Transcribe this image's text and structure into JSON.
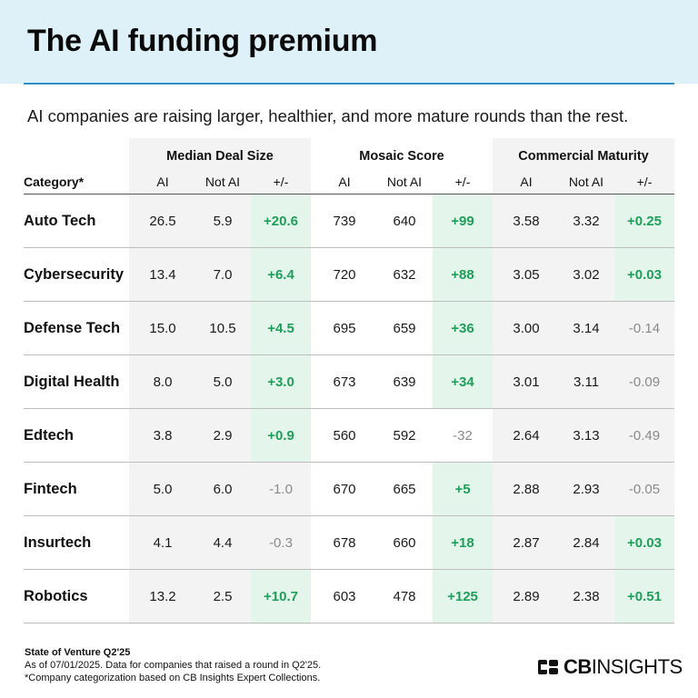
{
  "header": {
    "title": "The AI funding premium"
  },
  "subtitle": "AI companies are raising larger, healthier, and more mature rounds than the rest.",
  "chart_data": {
    "type": "table",
    "category_header": "Category*",
    "groups": [
      {
        "name": "Median Deal Size",
        "columns": [
          "AI",
          "Not AI",
          "+/-"
        ]
      },
      {
        "name": "Mosaic Score",
        "columns": [
          "AI",
          "Not AI",
          "+/-"
        ]
      },
      {
        "name": "Commercial Maturity",
        "columns": [
          "AI",
          "Not AI",
          "+/-"
        ]
      }
    ],
    "rows": [
      {
        "category": "Auto Tech",
        "values": [
          "26.5",
          "5.9",
          "+20.6",
          "739",
          "640",
          "+99",
          "3.58",
          "3.32",
          "+0.25"
        ]
      },
      {
        "category": "Cybersecurity",
        "values": [
          "13.4",
          "7.0",
          "+6.4",
          "720",
          "632",
          "+88",
          "3.05",
          "3.02",
          "+0.03"
        ]
      },
      {
        "category": "Defense Tech",
        "values": [
          "15.0",
          "10.5",
          "+4.5",
          "695",
          "659",
          "+36",
          "3.00",
          "3.14",
          "-0.14"
        ]
      },
      {
        "category": "Digital Health",
        "values": [
          "8.0",
          "5.0",
          "+3.0",
          "673",
          "639",
          "+34",
          "3.01",
          "3.11",
          "-0.09"
        ]
      },
      {
        "category": "Edtech",
        "values": [
          "3.8",
          "2.9",
          "+0.9",
          "560",
          "592",
          "-32",
          "2.64",
          "3.13",
          "-0.49"
        ]
      },
      {
        "category": "Fintech",
        "values": [
          "5.0",
          "6.0",
          "-1.0",
          "670",
          "665",
          "+5",
          "2.88",
          "2.93",
          "-0.05"
        ]
      },
      {
        "category": "Insurtech",
        "values": [
          "4.1",
          "4.4",
          "-0.3",
          "678",
          "660",
          "+18",
          "2.87",
          "2.84",
          "+0.03"
        ]
      },
      {
        "category": "Robotics",
        "values": [
          "13.2",
          "2.5",
          "+10.7",
          "603",
          "478",
          "+125",
          "2.89",
          "2.38",
          "+0.51"
        ]
      }
    ]
  },
  "footer": {
    "source": "State of Venture Q2'25",
    "note1": "As of 07/01/2025. Data for companies that raised a round in Q2'25.",
    "note2": "*Company categorization based on CB Insights Expert Collections."
  },
  "logo": {
    "text_bold": "CB",
    "text_thin": "INSIGHTS"
  },
  "colors": {
    "header_bg": "#dff1f8",
    "accent_rule": "#2f8fc4",
    "positive": "#1f9e5a",
    "negative": "#8a8a8a",
    "highlight": "#e4f5ec",
    "shaded_column": "#f3f3f3"
  }
}
